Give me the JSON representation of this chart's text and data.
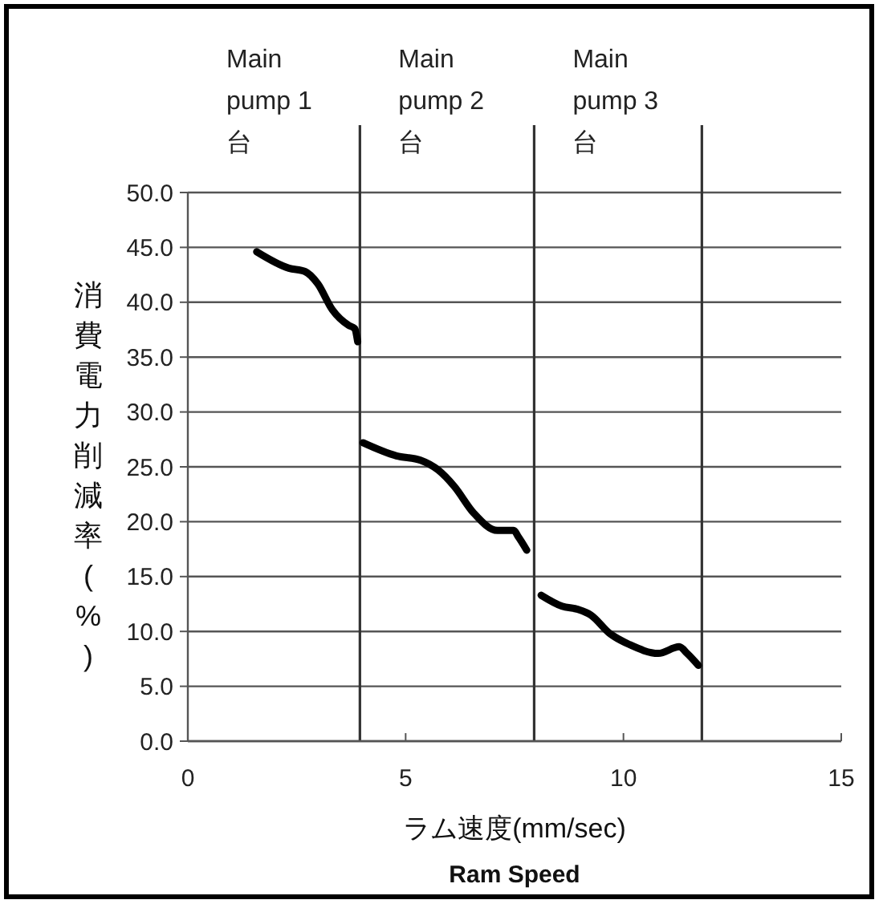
{
  "chart_data": {
    "type": "line",
    "xlabel": "ラム速度(mm/sec)",
    "ylabel": "消費電力削減率(%)",
    "annotations": [
      "Ram Speed"
    ],
    "xlim": [
      0,
      15
    ],
    "xticks": [
      0,
      5,
      10,
      15
    ],
    "ylim": [
      0,
      50
    ],
    "yticks": [
      {
        "value": 0,
        "label": "0.0"
      },
      {
        "value": 5,
        "label": "5.0"
      },
      {
        "value": 10,
        "label": "10.0"
      },
      {
        "value": 15,
        "label": "15.0"
      },
      {
        "value": 20,
        "label": "20.0"
      },
      {
        "value": 25,
        "label": "25.0"
      },
      {
        "value": 30,
        "label": "30.0"
      },
      {
        "value": 35,
        "label": "35.0"
      },
      {
        "value": 40,
        "label": "40.0"
      },
      {
        "value": 45,
        "label": "45.0"
      },
      {
        "value": 50,
        "label": "50.0"
      }
    ],
    "grid": "y",
    "marker": "none",
    "line_style": "solid",
    "series": [
      {
        "color": "#000000",
        "x": [
          1.58,
          2.32,
          2.69,
          2.98,
          3.32,
          3.69,
          3.83,
          3.9
        ],
        "values": [
          44.6,
          43.1,
          42.8,
          41.7,
          39.3,
          37.9,
          37.6,
          36.4
        ]
      },
      {
        "color": "#000000",
        "x": [
          4.02,
          4.79,
          5.34,
          5.75,
          6.12,
          6.56,
          7.11,
          7.48,
          7.59,
          7.78
        ],
        "values": [
          27.2,
          26.0,
          25.6,
          24.7,
          23.2,
          20.8,
          19.2,
          19.2,
          18.6,
          17.4
        ]
      },
      {
        "color": "#000000",
        "x": [
          8.11,
          8.59,
          8.96,
          9.25,
          9.69,
          10.14,
          10.8,
          11.28,
          11.46,
          11.72
        ],
        "values": [
          13.3,
          12.3,
          12.0,
          11.5,
          9.8,
          8.8,
          8.0,
          8.6,
          8.0,
          6.9
        ]
      }
    ],
    "ref_lines": [
      {
        "axis": "x",
        "value": 3.95,
        "label": "Main pump 1 台",
        "color": "#333333"
      },
      {
        "axis": "x",
        "value": 7.95,
        "label": "Main pump 2 台",
        "color": "#333333"
      },
      {
        "axis": "x",
        "value": 11.8,
        "label": "Main pump 3 台",
        "color": "#333333"
      }
    ]
  }
}
